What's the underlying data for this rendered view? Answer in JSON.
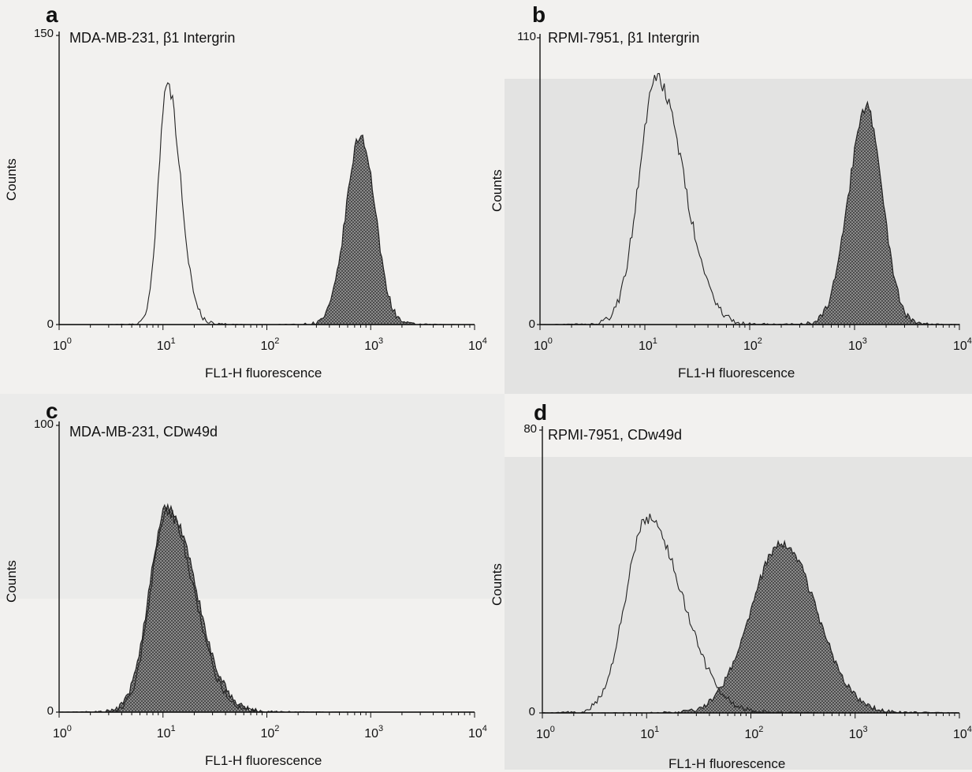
{
  "figure": {
    "x_ticks": [
      "10^0",
      "10^1",
      "10^2",
      "10^3",
      "10^4"
    ]
  },
  "chart_data": [
    {
      "type": "area",
      "panel": "a",
      "title": "MDA-MB-231, β1 Intergrin",
      "xlabel": "FL1-H fluorescence",
      "ylabel": "Counts",
      "x_scale": "log",
      "xlim": [
        1,
        10000
      ],
      "ylim": [
        0,
        150
      ],
      "y_tick_labels": [
        "0",
        "150"
      ],
      "series": [
        {
          "style": "open",
          "peak_x": 11,
          "peak_y": 125,
          "width_decades": 0.085,
          "skew": 1.5
        },
        {
          "style": "filled",
          "peak_x": 800,
          "peak_y": 98,
          "width_decades": 0.14,
          "skew": 1.0
        }
      ]
    },
    {
      "type": "area",
      "panel": "b",
      "title": "RPMI-7951, β1 Intergrin",
      "xlabel": "FL1-H fluorescence",
      "ylabel": "Counts",
      "x_scale": "log",
      "xlim": [
        1,
        10000
      ],
      "ylim": [
        0,
        110
      ],
      "y_tick_labels": [
        "0",
        "110"
      ],
      "series": [
        {
          "style": "open",
          "peak_x": 13,
          "peak_y": 94,
          "width_decades": 0.17,
          "skew": 1.5
        },
        {
          "style": "filled",
          "peak_x": 1300,
          "peak_y": 83,
          "width_decades": 0.17,
          "skew": 0.9
        }
      ]
    },
    {
      "type": "area",
      "panel": "c",
      "title": "MDA-MB-231, CDw49d",
      "xlabel": "FL1-H fluorescence",
      "ylabel": "Counts",
      "x_scale": "log",
      "xlim": [
        1,
        10000
      ],
      "ylim": [
        0,
        100
      ],
      "y_tick_labels": [
        "0",
        "100"
      ],
      "series": [
        {
          "style": "open",
          "peak_x": 11,
          "peak_y": 70,
          "width_decades": 0.16,
          "skew": 1.6
        },
        {
          "style": "filled",
          "peak_x": 11,
          "peak_y": 72,
          "width_decades": 0.17,
          "skew": 1.6
        }
      ]
    },
    {
      "type": "area",
      "panel": "d",
      "title": "RPMI-7951, CDw49d",
      "xlabel": "FL1-H fluorescence",
      "ylabel": "Counts",
      "x_scale": "log",
      "xlim": [
        1,
        10000
      ],
      "ylim": [
        0,
        80
      ],
      "y_tick_labels": [
        "0",
        "80"
      ],
      "series": [
        {
          "style": "open",
          "peak_x": 10,
          "peak_y": 55,
          "width_decades": 0.2,
          "skew": 1.7
        },
        {
          "style": "filled",
          "peak_x": 200,
          "peak_y": 48,
          "width_decades": 0.3,
          "skew": 1.1
        }
      ]
    }
  ]
}
